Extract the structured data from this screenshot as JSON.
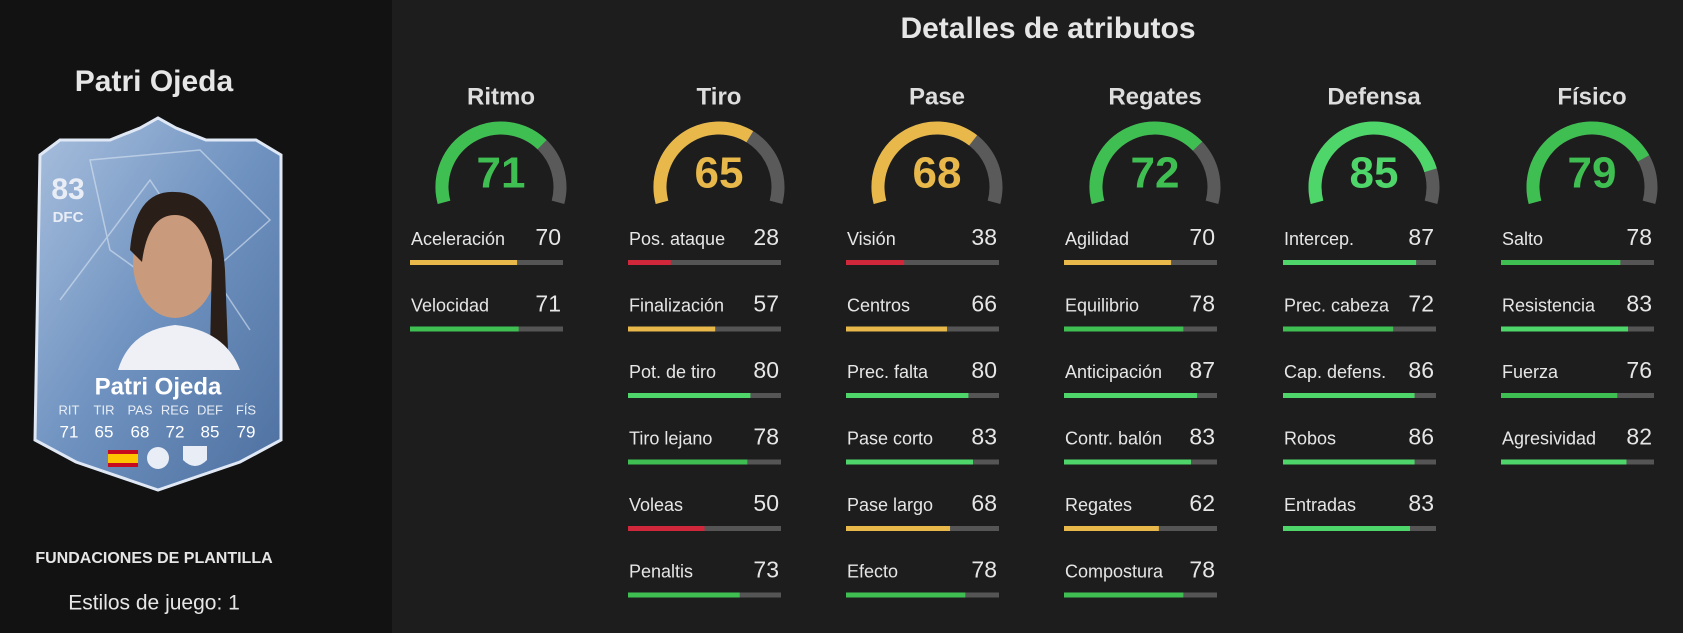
{
  "player": {
    "name": "Patri Ojeda"
  },
  "card": {
    "rating": 83,
    "position": "DFC",
    "name": "Patri Ojeda",
    "stats": [
      {
        "label": "RIT",
        "value": 71
      },
      {
        "label": "TIR",
        "value": 65
      },
      {
        "label": "PAS",
        "value": 68
      },
      {
        "label": "REG",
        "value": 72
      },
      {
        "label": "DEF",
        "value": 85
      },
      {
        "label": "FÍS",
        "value": 79
      }
    ]
  },
  "squad_label": "FUNDACIONES DE PLANTILLA",
  "playstyles": "Estilos de juego: 1",
  "attributes": {
    "title": "Detalles de atributos",
    "groups": [
      {
        "name": "Ritmo",
        "value": 71,
        "stats": [
          {
            "label": "Aceleración",
            "value": 70
          },
          {
            "label": "Velocidad",
            "value": 71
          }
        ]
      },
      {
        "name": "Tiro",
        "value": 65,
        "stats": [
          {
            "label": "Pos. ataque",
            "value": 28
          },
          {
            "label": "Finalización",
            "value": 57
          },
          {
            "label": "Pot. de tiro",
            "value": 80
          },
          {
            "label": "Tiro lejano",
            "value": 78
          },
          {
            "label": "Voleas",
            "value": 50
          },
          {
            "label": "Penaltis",
            "value": 73
          }
        ]
      },
      {
        "name": "Pase",
        "value": 68,
        "stats": [
          {
            "label": "Visión",
            "value": 38
          },
          {
            "label": "Centros",
            "value": 66
          },
          {
            "label": "Prec. falta",
            "value": 80
          },
          {
            "label": "Pase corto",
            "value": 83
          },
          {
            "label": "Pase largo",
            "value": 68
          },
          {
            "label": "Efecto",
            "value": 78
          }
        ]
      },
      {
        "name": "Regates",
        "value": 72,
        "stats": [
          {
            "label": "Agilidad",
            "value": 70
          },
          {
            "label": "Equilibrio",
            "value": 78
          },
          {
            "label": "Anticipación",
            "value": 87
          },
          {
            "label": "Contr. balón",
            "value": 83
          },
          {
            "label": "Regates",
            "value": 62
          },
          {
            "label": "Compostura",
            "value": 78
          }
        ]
      },
      {
        "name": "Defensa",
        "value": 85,
        "stats": [
          {
            "label": "Intercep.",
            "value": 87
          },
          {
            "label": "Prec. cabeza",
            "value": 72
          },
          {
            "label": "Cap. defens.",
            "value": 86
          },
          {
            "label": "Robos",
            "value": 86
          },
          {
            "label": "Entradas",
            "value": 83
          }
        ]
      },
      {
        "name": "Físico",
        "value": 79,
        "stats": [
          {
            "label": "Salto",
            "value": 78
          },
          {
            "label": "Resistencia",
            "value": 83
          },
          {
            "label": "Fuerza",
            "value": 76
          },
          {
            "label": "Agresividad",
            "value": 82
          }
        ]
      }
    ]
  }
}
